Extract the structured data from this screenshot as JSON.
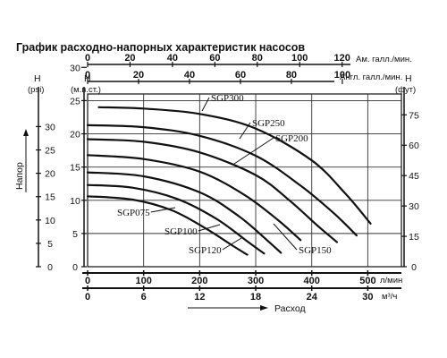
{
  "chart_data": {
    "type": "line",
    "title": "График расходно-напорных характеристик насосов",
    "xlabel": "Расход",
    "ylabel": "Напор",
    "grid": true,
    "x_axis_lmin": {
      "unit": "л/мин",
      "ticks": [
        0,
        100,
        200,
        300,
        400,
        500
      ],
      "range": [
        0,
        560
      ]
    },
    "x_axis_m3h": {
      "unit": "м³/ч",
      "ticks": [
        0,
        6,
        12,
        18,
        24,
        30
      ]
    },
    "x_axis_us_gpm": {
      "unit": "Ам. галл./мин.",
      "ticks": [
        0,
        20,
        40,
        60,
        80,
        100,
        120
      ]
    },
    "x_axis_uk_gpm": {
      "unit": "Англ. галл./мин.",
      "ticks": [
        0,
        20,
        40,
        60,
        80,
        100
      ]
    },
    "y_axis_m": {
      "unit": "H",
      "sublabel": "(м.в.ст.)",
      "ticks": [
        0,
        5,
        10,
        15,
        20,
        25,
        30
      ],
      "range": [
        0,
        26
      ]
    },
    "y_axis_psi": {
      "unit": "H",
      "sublabel": "(psi)",
      "ticks": [
        0,
        5,
        10,
        15,
        20,
        25,
        30
      ]
    },
    "y_axis_ft": {
      "unit": "H",
      "sublabel": "(фут)",
      "ticks": [
        0,
        15,
        30,
        45,
        60,
        75
      ]
    },
    "series": [
      {
        "name": "SGP300",
        "points": [
          [
            20,
            24
          ],
          [
            100,
            23.8
          ],
          [
            200,
            23
          ],
          [
            300,
            20.8
          ],
          [
            400,
            16
          ],
          [
            460,
            11
          ],
          [
            505,
            6.5
          ]
        ]
      },
      {
        "name": "SGP250",
        "points": [
          [
            0,
            21.3
          ],
          [
            100,
            21
          ],
          [
            200,
            19.7
          ],
          [
            300,
            16.7
          ],
          [
            380,
            12.2
          ],
          [
            440,
            8
          ],
          [
            480,
            4.7
          ]
        ]
      },
      {
        "name": "SGP200",
        "points": [
          [
            0,
            19.2
          ],
          [
            100,
            18.8
          ],
          [
            200,
            17.2
          ],
          [
            300,
            13.8
          ],
          [
            360,
            10
          ],
          [
            410,
            6.2
          ],
          [
            445,
            3.7
          ]
        ]
      },
      {
        "name": "SGP150",
        "points": [
          [
            0,
            16.8
          ],
          [
            100,
            16.2
          ],
          [
            200,
            14.3
          ],
          [
            280,
            10.8
          ],
          [
            340,
            7
          ],
          [
            380,
            4
          ]
        ]
      },
      {
        "name": "SGP120",
        "points": [
          [
            0,
            14.2
          ],
          [
            100,
            13.6
          ],
          [
            200,
            11.2
          ],
          [
            270,
            7.6
          ],
          [
            320,
            4
          ],
          [
            345,
            2.1
          ]
        ]
      },
      {
        "name": "SGP100",
        "points": [
          [
            0,
            12.3
          ],
          [
            80,
            11.9
          ],
          [
            160,
            10.2
          ],
          [
            230,
            7.2
          ],
          [
            290,
            3.5
          ],
          [
            315,
            2
          ]
        ]
      },
      {
        "name": "SGP075",
        "points": [
          [
            0,
            10.6
          ],
          [
            80,
            10.1
          ],
          [
            150,
            8.5
          ],
          [
            210,
            5.8
          ],
          [
            260,
            3.1
          ],
          [
            285,
            1.8
          ]
        ]
      }
    ]
  }
}
